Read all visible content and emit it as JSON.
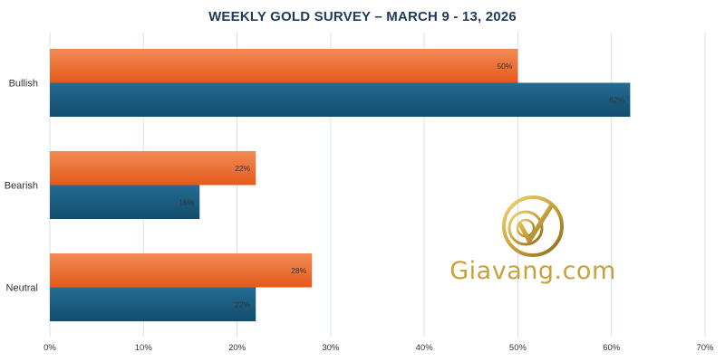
{
  "chart_data": {
    "type": "bar",
    "orientation": "horizontal",
    "title": "WEEKLY GOLD SURVEY – MARCH 9 - 13, 2026",
    "categories": [
      "Bullish",
      "Bearish",
      "Neutral"
    ],
    "series": [
      {
        "values": [
          50,
          22,
          28
        ],
        "labels": [
          "50%",
          "22%",
          "28%"
        ],
        "color": "#ee6a2a"
      },
      {
        "values": [
          62,
          16,
          22
        ],
        "labels": [
          "62%",
          "16%",
          "22%"
        ],
        "color": "#1b5d82"
      }
    ],
    "x_ticks": [
      "0%",
      "10%",
      "20%",
      "30%",
      "40%",
      "50%",
      "60%",
      "70%"
    ],
    "xlim": [
      0,
      70
    ],
    "grid": true,
    "legend": "none"
  },
  "watermark": {
    "text": "Giavang.com",
    "logo": "giavang-logo-icon",
    "color": "#c9a13a"
  }
}
